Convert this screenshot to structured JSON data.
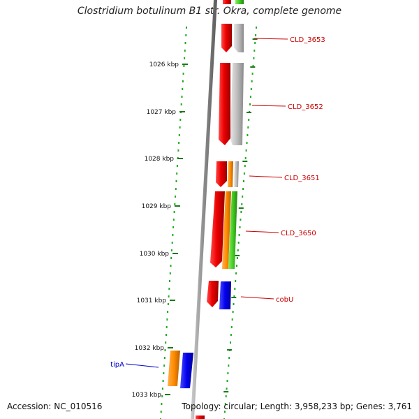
{
  "title": "Clostridium botulinum B1 str. Okra, complete genome",
  "footer": {
    "accession": "Accession: NC_010516",
    "stats": "Topology: circular; Length: 3,958,233 bp; Genes: 3,761"
  },
  "colors": {
    "tick": "#1a7a1a",
    "dots": "#22aa22",
    "backbone": "#8c8c8c",
    "label_red": "#cc0000",
    "label_blue": "#0000cc",
    "gene_red": "#ee0000",
    "gene_gray": "#bbbbbb",
    "gene_orange": "#ff8c00",
    "gene_green": "#44cc22",
    "gene_blue": "#0000ee"
  },
  "scale_labels": [
    "1026 kbp",
    "1027 kbp",
    "1028 kbp",
    "1029 kbp",
    "1030 kbp",
    "1031 kbp",
    "1032 kbp",
    "1033 kbp"
  ],
  "gene_labels": [
    {
      "text": "CLD_3653",
      "color": "red"
    },
    {
      "text": "CLD_3652",
      "color": "red"
    },
    {
      "text": "CLD_3651",
      "color": "red"
    },
    {
      "text": "CLD_3650",
      "color": "red"
    },
    {
      "text": "cobU",
      "color": "red"
    },
    {
      "text": "tipA",
      "color": "blue"
    }
  ]
}
